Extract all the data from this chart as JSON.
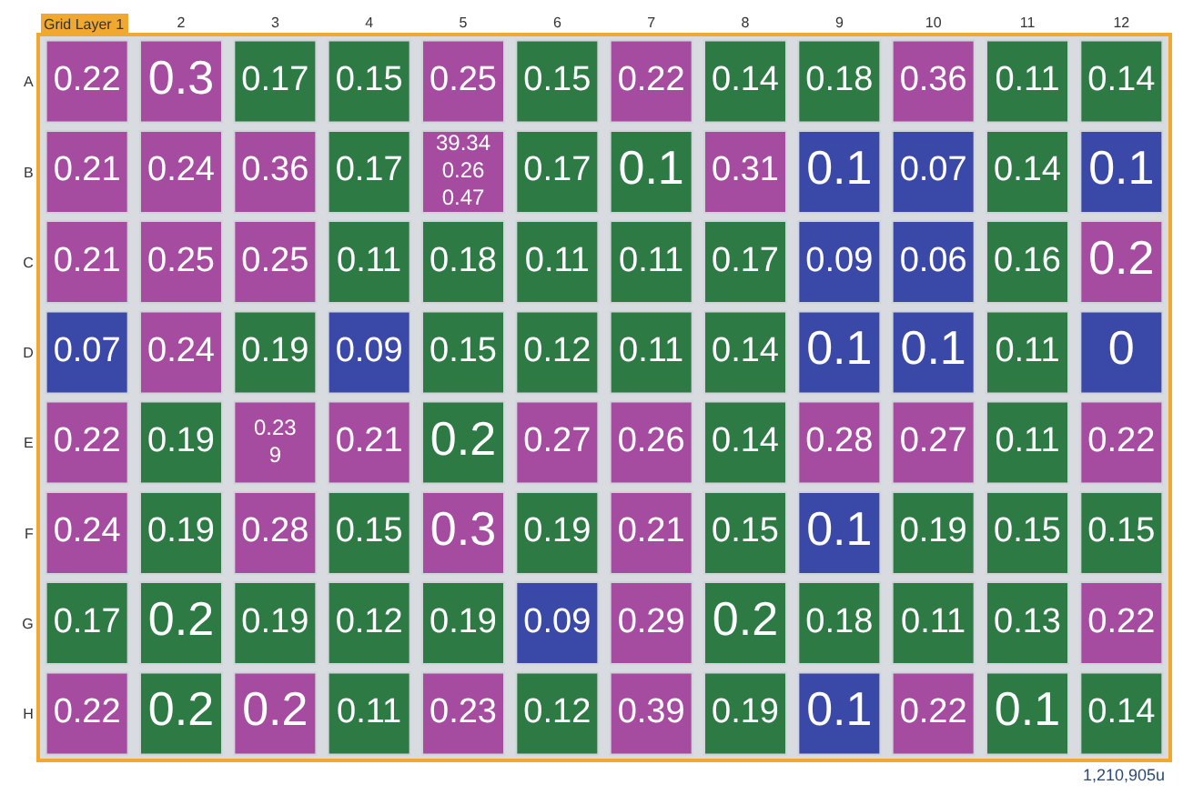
{
  "chart_data": {
    "type": "heatmap",
    "title": "Grid Layer 1",
    "categories": [
      null,
      "2",
      "3",
      "4",
      "5",
      "6",
      "7",
      "8",
      "9",
      "10",
      "11",
      "12"
    ],
    "y_categories": [
      "A",
      "B",
      "C",
      "D",
      "E",
      "F",
      "G",
      "H"
    ],
    "cells": [
      [
        0.22,
        0.3,
        0.17,
        0.15,
        0.25,
        0.15,
        0.22,
        0.14,
        0.18,
        0.36,
        0.11,
        0.14
      ],
      [
        0.21,
        0.24,
        0.36,
        0.17,
        null,
        0.17,
        0.1,
        0.31,
        0.1,
        0.07,
        0.14,
        0.1
      ],
      [
        0.21,
        0.25,
        0.25,
        0.11,
        0.18,
        0.11,
        0.11,
        0.17,
        0.09,
        0.06,
        0.16,
        0.2
      ],
      [
        0.07,
        0.24,
        0.19,
        0.09,
        0.15,
        0.12,
        0.11,
        0.14,
        0.1,
        0.1,
        0.11,
        0
      ],
      [
        0.22,
        0.19,
        null,
        0.21,
        0.2,
        0.27,
        0.26,
        0.14,
        0.28,
        0.27,
        0.11,
        0.22
      ],
      [
        0.24,
        0.19,
        0.28,
        0.15,
        0.3,
        0.19,
        0.21,
        0.15,
        0.1,
        0.19,
        0.15,
        0.15
      ],
      [
        0.17,
        0.2,
        0.19,
        0.12,
        0.19,
        0.09,
        0.29,
        0.2,
        0.18,
        0.11,
        0.13,
        0.22
      ],
      [
        0.22,
        0.2,
        0.2,
        0.11,
        0.23,
        0.12,
        0.39,
        0.19,
        0.1,
        0.22,
        0.1,
        0.14
      ]
    ],
    "colors": [
      [
        "#a64ca0",
        "#a64ca0",
        "#2e7a44",
        "#2e7a44",
        "#a64ca0",
        "#2e7a44",
        "#a64ca0",
        "#2e7a44",
        "#2e7a44",
        "#a64ca0",
        "#2e7a44",
        "#2e7a44"
      ],
      [
        "#a64ca0",
        "#a64ca0",
        "#a64ca0",
        "#2e7a44",
        "#a64ca0",
        "#2e7a44",
        "#2e7a44",
        "#a64ca0",
        "#3a48a8",
        "#3a48a8",
        "#2e7a44",
        "#3a48a8"
      ],
      [
        "#a64ca0",
        "#a64ca0",
        "#a64ca0",
        "#2e7a44",
        "#2e7a44",
        "#2e7a44",
        "#2e7a44",
        "#2e7a44",
        "#3a48a8",
        "#3a48a8",
        "#2e7a44",
        "#a64ca0"
      ],
      [
        "#3a48a8",
        "#a64ca0",
        "#2e7a44",
        "#3a48a8",
        "#2e7a44",
        "#2e7a44",
        "#2e7a44",
        "#2e7a44",
        "#3a48a8",
        "#3a48a8",
        "#2e7a44",
        "#3a48a8"
      ],
      [
        "#a64ca0",
        "#2e7a44",
        "#a64ca0",
        "#a64ca0",
        "#2e7a44",
        "#a64ca0",
        "#a64ca0",
        "#2e7a44",
        "#a64ca0",
        "#a64ca0",
        "#2e7a44",
        "#a64ca0"
      ],
      [
        "#a64ca0",
        "#2e7a44",
        "#a64ca0",
        "#2e7a44",
        "#a64ca0",
        "#2e7a44",
        "#a64ca0",
        "#2e7a44",
        "#3a48a8",
        "#2e7a44",
        "#2e7a44",
        "#2e7a44"
      ],
      [
        "#2e7a44",
        "#2e7a44",
        "#2e7a44",
        "#2e7a44",
        "#2e7a44",
        "#3a48a8",
        "#a64ca0",
        "#2e7a44",
        "#2e7a44",
        "#2e7a44",
        "#2e7a44",
        "#a64ca0"
      ],
      [
        "#a64ca0",
        "#2e7a44",
        "#a64ca0",
        "#2e7a44",
        "#a64ca0",
        "#2e7a44",
        "#a64ca0",
        "#2e7a44",
        "#3a48a8",
        "#a64ca0",
        "#2e7a44",
        "#2e7a44"
      ]
    ],
    "cell_labels": [
      [
        "0.22",
        "0.3",
        "0.17",
        "0.15",
        "0.25",
        "0.15",
        "0.22",
        "0.14",
        "0.18",
        "0.36",
        "0.11",
        "0.14"
      ],
      [
        "0.21",
        "0.24",
        "0.36",
        "0.17",
        "39.34\n0.26\n0.47",
        "0.17",
        "0.1",
        "0.31",
        "0.1",
        "0.07",
        "0.14",
        "0.1"
      ],
      [
        "0.21",
        "0.25",
        "0.25",
        "0.11",
        "0.18",
        "0.11",
        "0.11",
        "0.17",
        "0.09",
        "0.06",
        "0.16",
        "0.2"
      ],
      [
        "0.07",
        "0.24",
        "0.19",
        "0.09",
        "0.15",
        "0.12",
        "0.11",
        "0.14",
        "0.1",
        "0.1",
        "0.11",
        "0"
      ],
      [
        "0.22",
        "0.19",
        "0.23\n9",
        "0.21",
        "0.2",
        "0.27",
        "0.26",
        "0.14",
        "0.28",
        "0.27",
        "0.11",
        "0.22"
      ],
      [
        "0.24",
        "0.19",
        "0.28",
        "0.15",
        "0.3",
        "0.19",
        "0.21",
        "0.15",
        "0.1",
        "0.19",
        "0.15",
        "0.15"
      ],
      [
        "0.17",
        "0.2",
        "0.19",
        "0.12",
        "0.19",
        "0.09",
        "0.29",
        "0.2",
        "0.18",
        "0.11",
        "0.13",
        "0.22"
      ],
      [
        "0.22",
        "0.2",
        "0.2",
        "0.11",
        "0.23",
        "0.12",
        "0.39",
        "0.19",
        "0.1",
        "0.22",
        "0.1",
        "0.14"
      ]
    ],
    "annotations": [
      "1,210,905u"
    ]
  }
}
